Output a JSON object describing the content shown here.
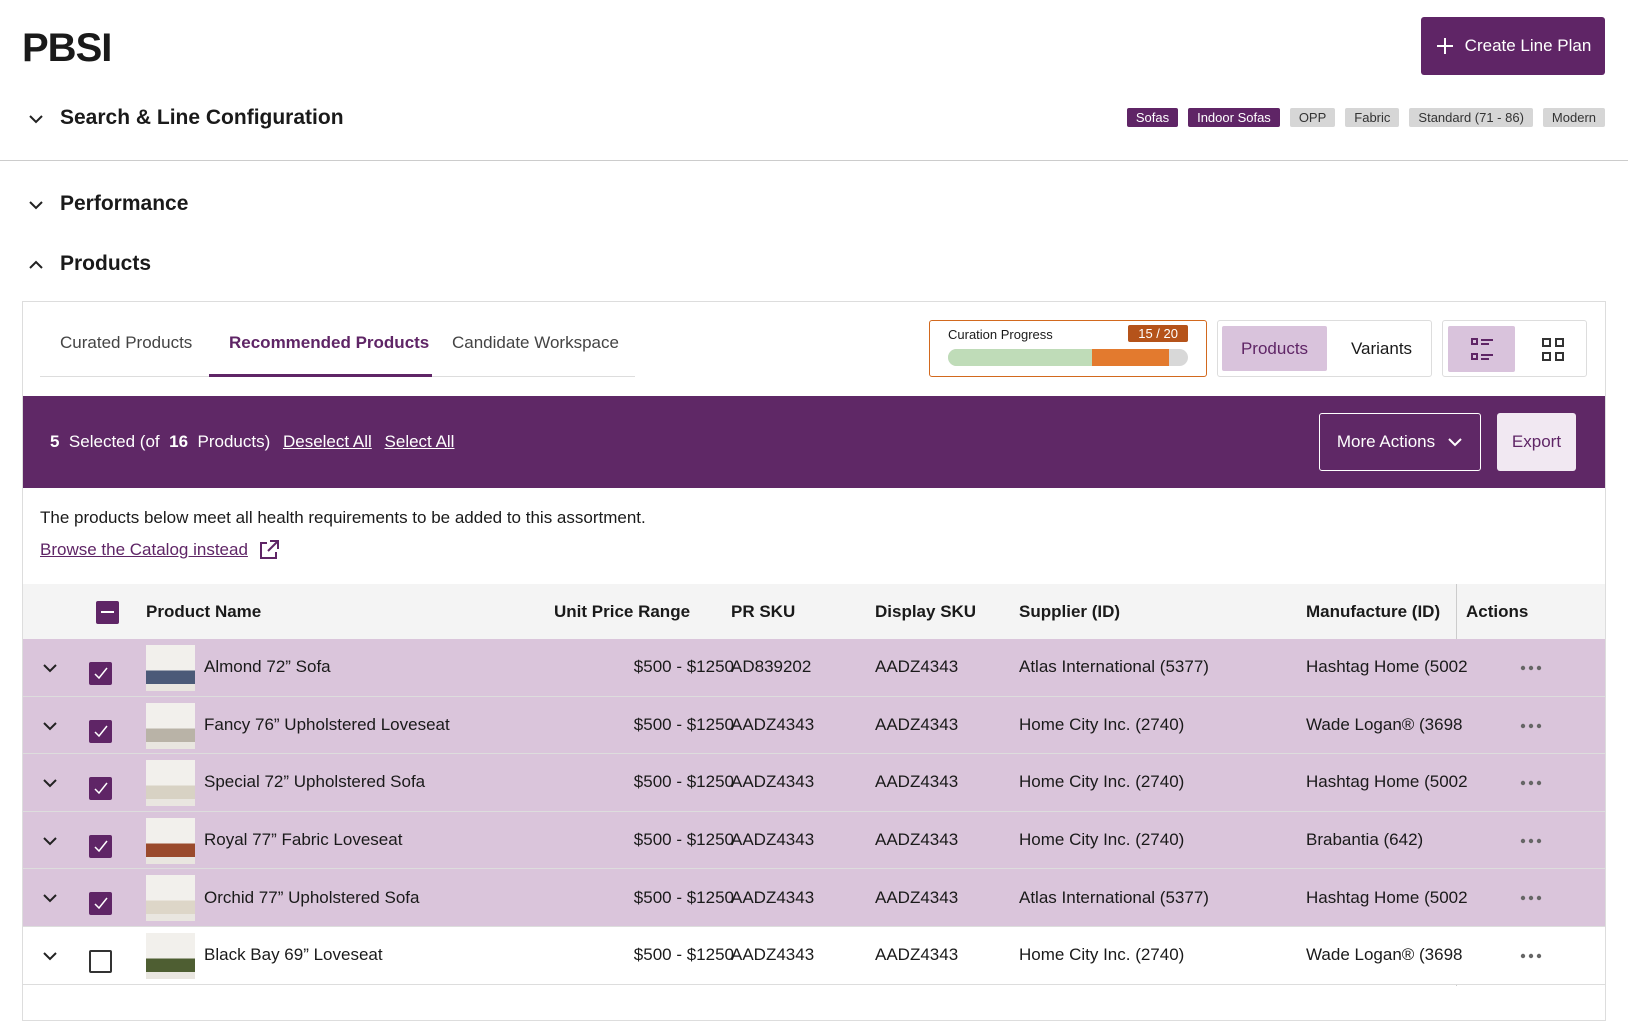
{
  "header": {
    "title": "PBSI",
    "create_button": "Create Line Plan"
  },
  "sections": [
    "Search & Line Configuration",
    "Performance",
    "Products"
  ],
  "tags": [
    {
      "text": "Sofas",
      "style": "dark"
    },
    {
      "text": "Indoor Sofas",
      "style": "dark"
    },
    {
      "text": "OPP",
      "style": "light"
    },
    {
      "text": "Fabric",
      "style": "light"
    },
    {
      "text": "Standard (71 - 86)",
      "style": "light"
    },
    {
      "text": "Modern",
      "style": "light"
    }
  ],
  "tabs": {
    "items": [
      "Curated Products",
      "Recommended Products",
      "Candidate Workspace"
    ],
    "active": 1
  },
  "progress": {
    "label": "Curation Progress",
    "count_label": "15 / 20"
  },
  "view_toggle": {
    "items": [
      "Products",
      "Variants"
    ],
    "active": 0
  },
  "selection_bar": {
    "selected": 5,
    "selected_text": "Selected (of",
    "total": 16,
    "total_text": "Products)",
    "deselect": "Deselect All",
    "select_all": "Select All",
    "more_actions": "More Actions",
    "export": "Export"
  },
  "notice": {
    "text": "The products below meet all health requirements to be added to this assortment.",
    "link": "Browse the Catalog instead"
  },
  "table": {
    "columns": [
      "Product Name",
      "Unit Price Range",
      "PR SKU",
      "Display SKU",
      "Supplier (ID)",
      "Manufacture (ID)",
      "Actions"
    ],
    "rows": [
      {
        "selected": true,
        "cells": [
          "Almond 72” Sofa",
          "$500 - $1250",
          "AD839202",
          "AADZ4343",
          "Atlas International (5377)",
          "Hashtag Home (5002"
        ]
      },
      {
        "selected": true,
        "cells": [
          "Fancy 76” Upholstered Loveseat",
          "$500 - $1250",
          "AADZ4343",
          "AADZ4343",
          "Home City Inc. (2740)",
          "Wade Logan® (3698"
        ]
      },
      {
        "selected": true,
        "cells": [
          "Special 72” Upholstered Sofa",
          "$500 - $1250",
          "AADZ4343",
          "AADZ4343",
          "Home City Inc. (2740)",
          "Hashtag Home (5002"
        ]
      },
      {
        "selected": true,
        "cells": [
          "Royal 77” Fabric Loveseat",
          "$500 - $1250",
          "AADZ4343",
          "AADZ4343",
          "Home City Inc. (2740)",
          "Brabantia (642)"
        ]
      },
      {
        "selected": true,
        "cells": [
          "Orchid 77” Upholstered Sofa",
          "$500 - $1250",
          "AADZ4343",
          "AADZ4343",
          "Atlas International (5377)",
          "Hashtag Home (5002"
        ]
      },
      {
        "selected": false,
        "cells": [
          "Black Bay 69” Loveseat",
          "$500 - $1250",
          "AADZ4343",
          "AADZ4343",
          "Home City Inc. (2740)",
          "Wade Logan® (3698"
        ]
      }
    ]
  }
}
